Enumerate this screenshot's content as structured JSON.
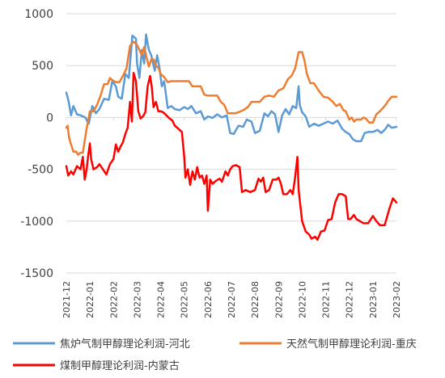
{
  "chart_data": {
    "type": "line",
    "title": "",
    "xlabel": "",
    "ylabel": "",
    "ylim": [
      -1500,
      1000
    ],
    "yticks": [
      1000,
      500,
      0,
      -500,
      -1000,
      -1500
    ],
    "ytick_labels": [
      "1000",
      "500",
      "0",
      "-500",
      "-1000",
      "-1500"
    ],
    "xticks": [
      "2021-12",
      "2022-01",
      "2022-02",
      "2022-03",
      "2022-04",
      "2022-05",
      "2022-06",
      "2022-07",
      "2022-08",
      "2022-09",
      "2022-10",
      "2022-11",
      "2022-12",
      "2023-01",
      "2023-02"
    ],
    "x_range": [
      0,
      14
    ],
    "grid": true,
    "legend_position": "bottom",
    "series": [
      {
        "name": "焦炉气制甲醇理论利润-河北",
        "color": "#5b9bd5",
        "points": [
          [
            0.0,
            240
          ],
          [
            0.1,
            150
          ],
          [
            0.2,
            20
          ],
          [
            0.3,
            110
          ],
          [
            0.45,
            30
          ],
          [
            0.6,
            20
          ],
          [
            0.8,
            0
          ],
          [
            0.95,
            -60
          ],
          [
            1.1,
            110
          ],
          [
            1.25,
            40
          ],
          [
            1.4,
            80
          ],
          [
            1.6,
            180
          ],
          [
            1.8,
            170
          ],
          [
            1.95,
            350
          ],
          [
            2.1,
            300
          ],
          [
            2.2,
            200
          ],
          [
            2.35,
            180
          ],
          [
            2.5,
            420
          ],
          [
            2.65,
            380
          ],
          [
            2.8,
            790
          ],
          [
            2.95,
            760
          ],
          [
            3.0,
            520
          ],
          [
            3.1,
            380
          ],
          [
            3.2,
            650
          ],
          [
            3.3,
            520
          ],
          [
            3.38,
            800
          ],
          [
            3.5,
            650
          ],
          [
            3.6,
            600
          ],
          [
            3.75,
            450
          ],
          [
            3.85,
            600
          ],
          [
            3.95,
            480
          ],
          [
            4.05,
            300
          ],
          [
            4.15,
            350
          ],
          [
            4.3,
            90
          ],
          [
            4.45,
            110
          ],
          [
            4.6,
            80
          ],
          [
            4.8,
            70
          ],
          [
            5.0,
            100
          ],
          [
            5.15,
            80
          ],
          [
            5.3,
            110
          ],
          [
            5.5,
            40
          ],
          [
            5.7,
            60
          ],
          [
            5.85,
            -20
          ],
          [
            6.0,
            10
          ],
          [
            6.2,
            -5
          ],
          [
            6.4,
            30
          ],
          [
            6.6,
            0
          ],
          [
            6.8,
            20
          ],
          [
            6.95,
            -150
          ],
          [
            7.1,
            -160
          ],
          [
            7.3,
            -80
          ],
          [
            7.5,
            -90
          ],
          [
            7.65,
            -20
          ],
          [
            7.85,
            -40
          ],
          [
            8.0,
            -150
          ],
          [
            8.2,
            -130
          ],
          [
            8.4,
            40
          ],
          [
            8.55,
            10
          ],
          [
            8.7,
            60
          ],
          [
            8.85,
            30
          ],
          [
            9.0,
            -140
          ],
          [
            9.15,
            20
          ],
          [
            9.3,
            80
          ],
          [
            9.45,
            30
          ],
          [
            9.6,
            110
          ],
          [
            9.75,
            90
          ],
          [
            9.85,
            300
          ],
          [
            9.9,
            120
          ],
          [
            10.0,
            50
          ],
          [
            10.15,
            10
          ],
          [
            10.3,
            -90
          ],
          [
            10.5,
            -60
          ],
          [
            10.7,
            -80
          ],
          [
            10.9,
            -60
          ],
          [
            11.1,
            -40
          ],
          [
            11.3,
            -60
          ],
          [
            11.5,
            -30
          ],
          [
            11.7,
            -110
          ],
          [
            11.85,
            -140
          ],
          [
            12.0,
            -160
          ],
          [
            12.15,
            -210
          ],
          [
            12.3,
            -230
          ],
          [
            12.5,
            -230
          ],
          [
            12.65,
            -150
          ],
          [
            12.8,
            -140
          ],
          [
            13.0,
            -140
          ],
          [
            13.2,
            -120
          ],
          [
            13.35,
            -150
          ],
          [
            13.5,
            -120
          ],
          [
            13.65,
            -70
          ],
          [
            13.8,
            -100
          ],
          [
            14.0,
            -90
          ]
        ]
      },
      {
        "name": "天然气制甲醇理论利润-重庆",
        "color": "#ed7d31",
        "points": [
          [
            0.0,
            -100
          ],
          [
            0.05,
            -80
          ],
          [
            0.12,
            -200
          ],
          [
            0.2,
            -260
          ],
          [
            0.3,
            -330
          ],
          [
            0.42,
            -330
          ],
          [
            0.5,
            -360
          ],
          [
            0.6,
            -340
          ],
          [
            0.7,
            -340
          ],
          [
            0.85,
            -120
          ],
          [
            1.0,
            60
          ],
          [
            1.15,
            60
          ],
          [
            1.3,
            120
          ],
          [
            1.45,
            210
          ],
          [
            1.6,
            320
          ],
          [
            1.75,
            320
          ],
          [
            1.85,
            380
          ],
          [
            1.95,
            360
          ],
          [
            2.1,
            340
          ],
          [
            2.25,
            340
          ],
          [
            2.4,
            400
          ],
          [
            2.55,
            470
          ],
          [
            2.7,
            690
          ],
          [
            2.85,
            730
          ],
          [
            3.0,
            700
          ],
          [
            3.1,
            650
          ],
          [
            3.2,
            600
          ],
          [
            3.3,
            680
          ],
          [
            3.4,
            580
          ],
          [
            3.5,
            490
          ],
          [
            3.6,
            560
          ],
          [
            3.7,
            560
          ],
          [
            3.8,
            500
          ],
          [
            3.9,
            480
          ],
          [
            4.0,
            420
          ],
          [
            4.15,
            390
          ],
          [
            4.3,
            340
          ],
          [
            4.45,
            350
          ],
          [
            4.6,
            350
          ],
          [
            4.8,
            350
          ],
          [
            5.0,
            350
          ],
          [
            5.2,
            350
          ],
          [
            5.35,
            300
          ],
          [
            5.5,
            300
          ],
          [
            5.7,
            300
          ],
          [
            5.85,
            220
          ],
          [
            6.0,
            210
          ],
          [
            6.2,
            210
          ],
          [
            6.4,
            210
          ],
          [
            6.55,
            150
          ],
          [
            6.7,
            120
          ],
          [
            6.85,
            40
          ],
          [
            7.0,
            40
          ],
          [
            7.15,
            40
          ],
          [
            7.3,
            50
          ],
          [
            7.5,
            70
          ],
          [
            7.7,
            100
          ],
          [
            7.85,
            150
          ],
          [
            8.0,
            150
          ],
          [
            8.2,
            150
          ],
          [
            8.4,
            200
          ],
          [
            8.6,
            210
          ],
          [
            8.8,
            200
          ],
          [
            9.0,
            260
          ],
          [
            9.2,
            280
          ],
          [
            9.4,
            370
          ],
          [
            9.55,
            400
          ],
          [
            9.7,
            470
          ],
          [
            9.85,
            630
          ],
          [
            10.0,
            630
          ],
          [
            10.1,
            550
          ],
          [
            10.2,
            420
          ],
          [
            10.35,
            330
          ],
          [
            10.5,
            330
          ],
          [
            10.7,
            260
          ],
          [
            10.9,
            200
          ],
          [
            11.1,
            190
          ],
          [
            11.3,
            150
          ],
          [
            11.45,
            110
          ],
          [
            11.6,
            130
          ],
          [
            11.75,
            70
          ],
          [
            11.85,
            60
          ],
          [
            12.0,
            -20
          ],
          [
            12.1,
            0
          ],
          [
            12.2,
            -40
          ],
          [
            12.3,
            -20
          ],
          [
            12.4,
            -20
          ],
          [
            12.5,
            -20
          ],
          [
            12.6,
            0
          ],
          [
            12.7,
            -10
          ],
          [
            12.85,
            -50
          ],
          [
            13.0,
            -50
          ],
          [
            13.15,
            30
          ],
          [
            13.3,
            60
          ],
          [
            13.5,
            110
          ],
          [
            13.65,
            160
          ],
          [
            13.8,
            200
          ],
          [
            14.0,
            200
          ]
        ]
      },
      {
        "name": "煤制甲醇理论利润-内蒙古",
        "color": "#ff0000",
        "points": [
          [
            0.0,
            -470
          ],
          [
            0.08,
            -560
          ],
          [
            0.2,
            -520
          ],
          [
            0.3,
            -550
          ],
          [
            0.45,
            -470
          ],
          [
            0.6,
            -500
          ],
          [
            0.7,
            -380
          ],
          [
            0.78,
            -600
          ],
          [
            0.86,
            -500
          ],
          [
            0.92,
            -380
          ],
          [
            1.0,
            -250
          ],
          [
            1.05,
            -400
          ],
          [
            1.15,
            -500
          ],
          [
            1.3,
            -480
          ],
          [
            1.4,
            -450
          ],
          [
            1.55,
            -500
          ],
          [
            1.7,
            -550
          ],
          [
            1.85,
            -450
          ],
          [
            2.0,
            -400
          ],
          [
            2.1,
            -260
          ],
          [
            2.2,
            -330
          ],
          [
            2.3,
            -280
          ],
          [
            2.4,
            -240
          ],
          [
            2.5,
            -160
          ],
          [
            2.6,
            -100
          ],
          [
            2.7,
            150
          ],
          [
            2.78,
            -40
          ],
          [
            2.85,
            430
          ],
          [
            2.95,
            350
          ],
          [
            3.05,
            60
          ],
          [
            3.15,
            -10
          ],
          [
            3.25,
            10
          ],
          [
            3.35,
            50
          ],
          [
            3.45,
            300
          ],
          [
            3.55,
            400
          ],
          [
            3.62,
            300
          ],
          [
            3.7,
            100
          ],
          [
            3.8,
            150
          ],
          [
            3.9,
            60
          ],
          [
            4.0,
            60
          ],
          [
            4.1,
            50
          ],
          [
            4.2,
            30
          ],
          [
            4.35,
            -5
          ],
          [
            4.5,
            -30
          ],
          [
            4.6,
            -80
          ],
          [
            4.7,
            -100
          ],
          [
            4.8,
            -120
          ],
          [
            4.9,
            -140
          ],
          [
            5.0,
            -380
          ],
          [
            5.05,
            -580
          ],
          [
            5.15,
            -500
          ],
          [
            5.25,
            -650
          ],
          [
            5.35,
            -520
          ],
          [
            5.45,
            -600
          ],
          [
            5.55,
            -480
          ],
          [
            5.65,
            -580
          ],
          [
            5.75,
            -560
          ],
          [
            5.85,
            -640
          ],
          [
            5.95,
            -560
          ],
          [
            6.0,
            -900
          ],
          [
            6.1,
            -600
          ],
          [
            6.2,
            -640
          ],
          [
            6.35,
            -610
          ],
          [
            6.5,
            -590
          ],
          [
            6.6,
            -620
          ],
          [
            6.75,
            -520
          ],
          [
            6.85,
            -560
          ],
          [
            6.95,
            -500
          ],
          [
            7.05,
            -470
          ],
          [
            7.2,
            -460
          ],
          [
            7.35,
            -480
          ],
          [
            7.45,
            -720
          ],
          [
            7.6,
            -700
          ],
          [
            7.8,
            -720
          ],
          [
            8.0,
            -700
          ],
          [
            8.15,
            -590
          ],
          [
            8.25,
            -620
          ],
          [
            8.35,
            -580
          ],
          [
            8.45,
            -720
          ],
          [
            8.6,
            -700
          ],
          [
            8.75,
            -600
          ],
          [
            8.9,
            -600
          ],
          [
            9.0,
            -580
          ],
          [
            9.1,
            -640
          ],
          [
            9.2,
            -740
          ],
          [
            9.35,
            -740
          ],
          [
            9.5,
            -700
          ],
          [
            9.6,
            -740
          ],
          [
            9.7,
            -580
          ],
          [
            9.8,
            -380
          ],
          [
            9.85,
            -700
          ],
          [
            10.0,
            -1000
          ],
          [
            10.15,
            -1100
          ],
          [
            10.3,
            -1130
          ],
          [
            10.4,
            -1170
          ],
          [
            10.55,
            -1150
          ],
          [
            10.65,
            -1180
          ],
          [
            10.8,
            -1100
          ],
          [
            10.95,
            -1090
          ],
          [
            11.1,
            -990
          ],
          [
            11.25,
            -980
          ],
          [
            11.4,
            -820
          ],
          [
            11.55,
            -740
          ],
          [
            11.7,
            -740
          ],
          [
            11.85,
            -760
          ],
          [
            11.95,
            -980
          ],
          [
            12.05,
            -980
          ],
          [
            12.2,
            -940
          ],
          [
            12.3,
            -980
          ],
          [
            12.45,
            -1000
          ],
          [
            12.6,
            -1020
          ],
          [
            12.8,
            -1020
          ],
          [
            13.0,
            -950
          ],
          [
            13.15,
            -1000
          ],
          [
            13.3,
            -1040
          ],
          [
            13.5,
            -1040
          ],
          [
            13.7,
            -880
          ],
          [
            13.85,
            -780
          ],
          [
            14.0,
            -820
          ]
        ]
      }
    ]
  }
}
